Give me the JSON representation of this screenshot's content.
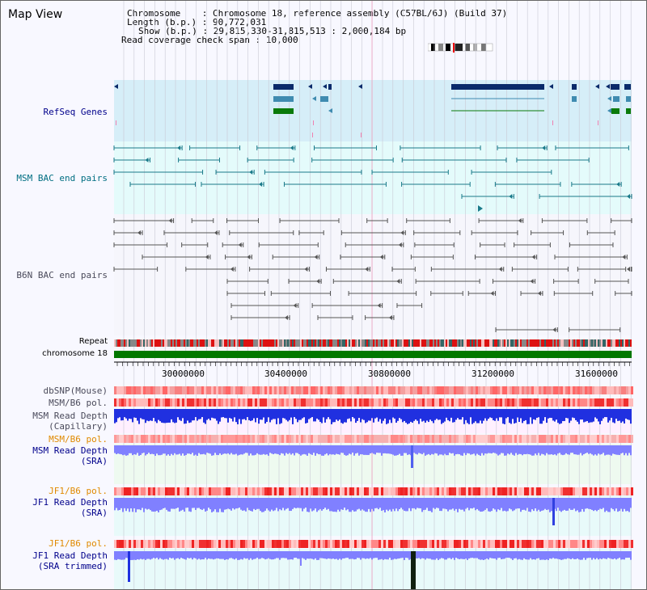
{
  "title": "Map View",
  "header": {
    "chromosome_label": "Chromosome",
    "chromosome_value": "Chromosome 18, reference assembly (C57BL/6J) (Build 37)",
    "length_label": "Length (b.p.)",
    "length_value": "90,772,031",
    "show_label": "Show (b.p.)",
    "show_value": "29,815,330-31,815,513 : 2,000,184 bp",
    "coverage_label": "Read coverage check span",
    "coverage_value": "10,000"
  },
  "tracks": {
    "refseq": "RefSeq Genes",
    "msm_bac": "MSM BAC end pairs",
    "b6n_bac": "B6N BAC end pairs",
    "repeat": "Repeat",
    "chromosome": "chromosome 18",
    "dbsnp": "dbSNP(Mouse)",
    "msm_b6_pol_1": "MSM/B6 pol.",
    "msm_depth_cap_1": "MSM Read Depth",
    "msm_depth_cap_2": "(Capillary)",
    "msm_b6_pol_2": "MSM/B6 pol.",
    "msm_depth_sra_1": "MSM Read Depth",
    "msm_depth_sra_2": "(SRA)",
    "jf1_b6_pol_1": "JF1/B6 pol.",
    "jf1_depth_sra_1": "JF1 Read Depth",
    "jf1_depth_sra_2": "(SRA)",
    "jf1_b6_pol_2": "JF1/B6 pol.",
    "jf1_depth_trim_1": "JF1 Read Depth",
    "jf1_depth_trim_2": "(SRA trimmed)"
  },
  "ruler": {
    "ticks": [
      "30000000",
      "30400000",
      "30800000",
      "31200000",
      "31600000"
    ]
  },
  "colors": {
    "refseq_navy": "#0a2a6a",
    "refseq_steel": "#3f8bb0",
    "refseq_green": "#0a7a0a",
    "msm_line": "#1a7a8a",
    "b6n_line": "#555555",
    "chromosome_bar": "#007700",
    "depth_blue": "#2030e0",
    "depth_light": "#8080ff",
    "polymorphism_red": "#f04040"
  }
}
